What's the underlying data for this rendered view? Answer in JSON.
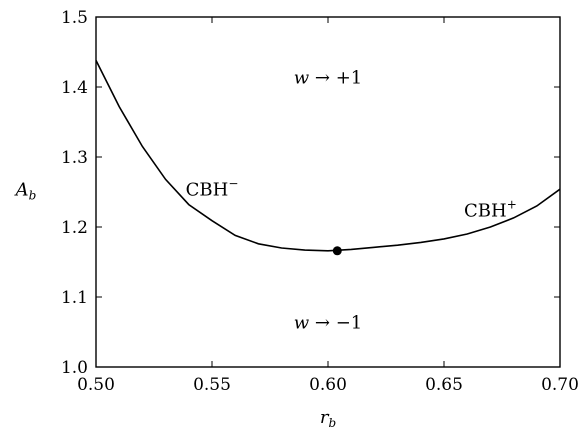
{
  "chart_data": {
    "type": "line",
    "title": "",
    "xlabel": {
      "main": "r",
      "sub": "b"
    },
    "ylabel": {
      "main": "A",
      "sub": "b"
    },
    "xlim": [
      0.5,
      0.7
    ],
    "ylim": [
      1.0,
      1.5
    ],
    "x_ticks": [
      "0.50",
      "0.55",
      "0.60",
      "0.65",
      "0.70"
    ],
    "y_ticks": [
      "1.0",
      "1.1",
      "1.2",
      "1.3",
      "1.4",
      "1.5"
    ],
    "grid": false,
    "legend": "none",
    "series": [
      {
        "x": [
          0.5,
          0.505,
          0.51,
          0.52,
          0.53,
          0.54,
          0.55,
          0.56,
          0.57,
          0.58,
          0.59,
          0.6,
          0.61,
          0.62,
          0.63,
          0.64,
          0.65,
          0.66,
          0.67,
          0.68,
          0.69,
          0.7
        ],
        "y": [
          1.438,
          1.405,
          1.372,
          1.315,
          1.268,
          1.232,
          1.209,
          1.188,
          1.176,
          1.17,
          1.167,
          1.166,
          1.168,
          1.171,
          1.174,
          1.178,
          1.183,
          1.19,
          1.2,
          1.213,
          1.23,
          1.254
        ],
        "color": "#000000"
      }
    ],
    "marker_point": {
      "x": 0.604,
      "y": 1.166
    },
    "annotations": [
      {
        "main": "w",
        "rest": " → +1",
        "x": 0.6,
        "y": 1.405
      },
      {
        "main": "w",
        "rest": " → −1",
        "x": 0.6,
        "y": 1.055
      },
      {
        "main": "CBH",
        "sup": "−",
        "x": 0.55,
        "y": 1.245
      },
      {
        "main": "CBH",
        "sup": "+",
        "x": 0.67,
        "y": 1.215
      }
    ]
  }
}
